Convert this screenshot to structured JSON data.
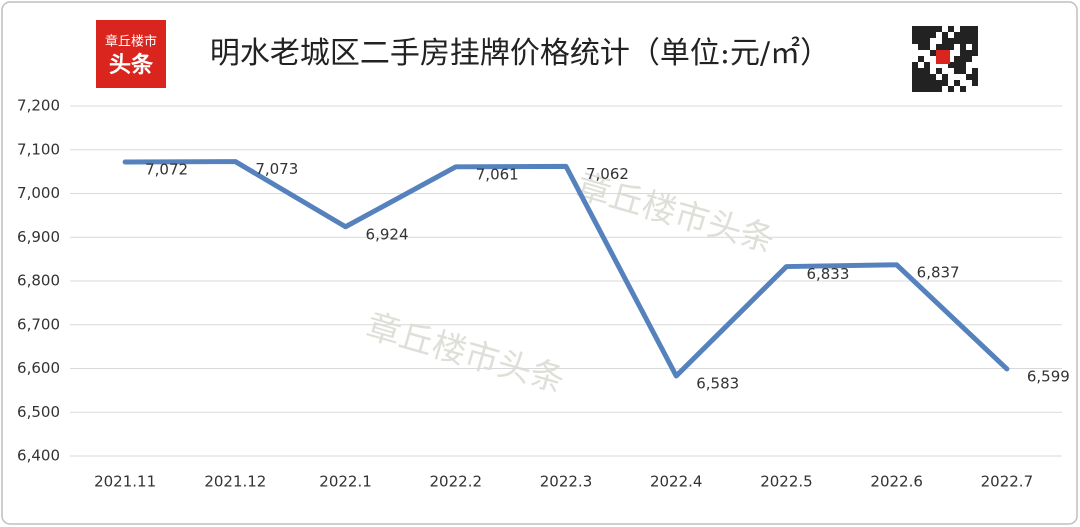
{
  "chart_data": {
    "type": "line",
    "title": "明水老城区二手房挂牌价格统计（单位:元/㎡）",
    "logo": [
      "章丘楼市",
      "头条"
    ],
    "watermarks": [
      "章丘楼市头条",
      "章丘楼市头条"
    ],
    "categories": [
      "2021.11",
      "2021.12",
      "2022.1",
      "2022.2",
      "2022.3",
      "2022.4",
      "2022.5",
      "2022.6",
      "2022.7"
    ],
    "series": [
      {
        "name": "挂牌价格",
        "color": "#5582bd",
        "values": [
          7072,
          7073,
          6924,
          7061,
          7062,
          6583,
          6833,
          6837,
          6599
        ],
        "value_labels": [
          "7,072",
          "7,073",
          "6,924",
          "7,061",
          "7,062",
          "6,583",
          "6,833",
          "6,837",
          "6,599"
        ]
      }
    ],
    "ylim": [
      6400,
      7200
    ],
    "yticks": [
      {
        "value": 6400,
        "label": "6,400"
      },
      {
        "value": 6500,
        "label": "6,500"
      },
      {
        "value": 6600,
        "label": "6,600"
      },
      {
        "value": 6700,
        "label": "6,700"
      },
      {
        "value": 6800,
        "label": "6,800"
      },
      {
        "value": 6900,
        "label": "6,900"
      },
      {
        "value": 7000,
        "label": "7,000"
      },
      {
        "value": 7100,
        "label": "7,100"
      },
      {
        "value": 7200,
        "label": "7,200"
      }
    ],
    "grid": true
  }
}
